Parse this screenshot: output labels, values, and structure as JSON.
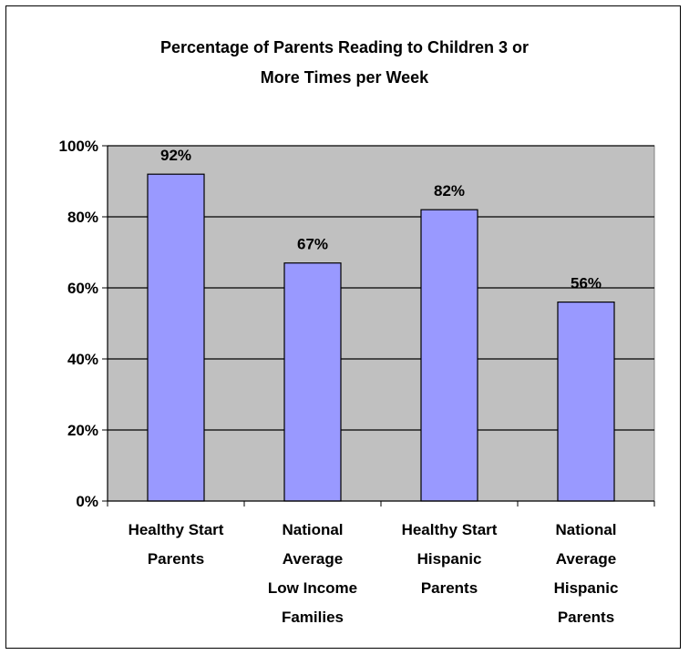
{
  "chart_data": {
    "type": "bar",
    "title_lines": [
      "Percentage of Parents Reading to Children 3 or",
      "More Times per Week"
    ],
    "categories": [
      [
        "Healthy Start",
        "Parents"
      ],
      [
        "National",
        "Average",
        "Low Income",
        "Families"
      ],
      [
        "Healthy Start",
        "Hispanic",
        "Parents"
      ],
      [
        "National",
        "Average",
        "Hispanic",
        "Parents"
      ]
    ],
    "values": [
      92,
      67,
      82,
      56
    ],
    "value_labels": [
      "92%",
      "67%",
      "82%",
      "56%"
    ],
    "y_ticks": [
      "0%",
      "20%",
      "40%",
      "60%",
      "80%",
      "100%"
    ],
    "ylim": [
      0,
      100
    ],
    "grid": true,
    "colors": {
      "bar": "#9999ff",
      "plot_bg": "#c0c0c0",
      "grid": "#000000"
    }
  }
}
